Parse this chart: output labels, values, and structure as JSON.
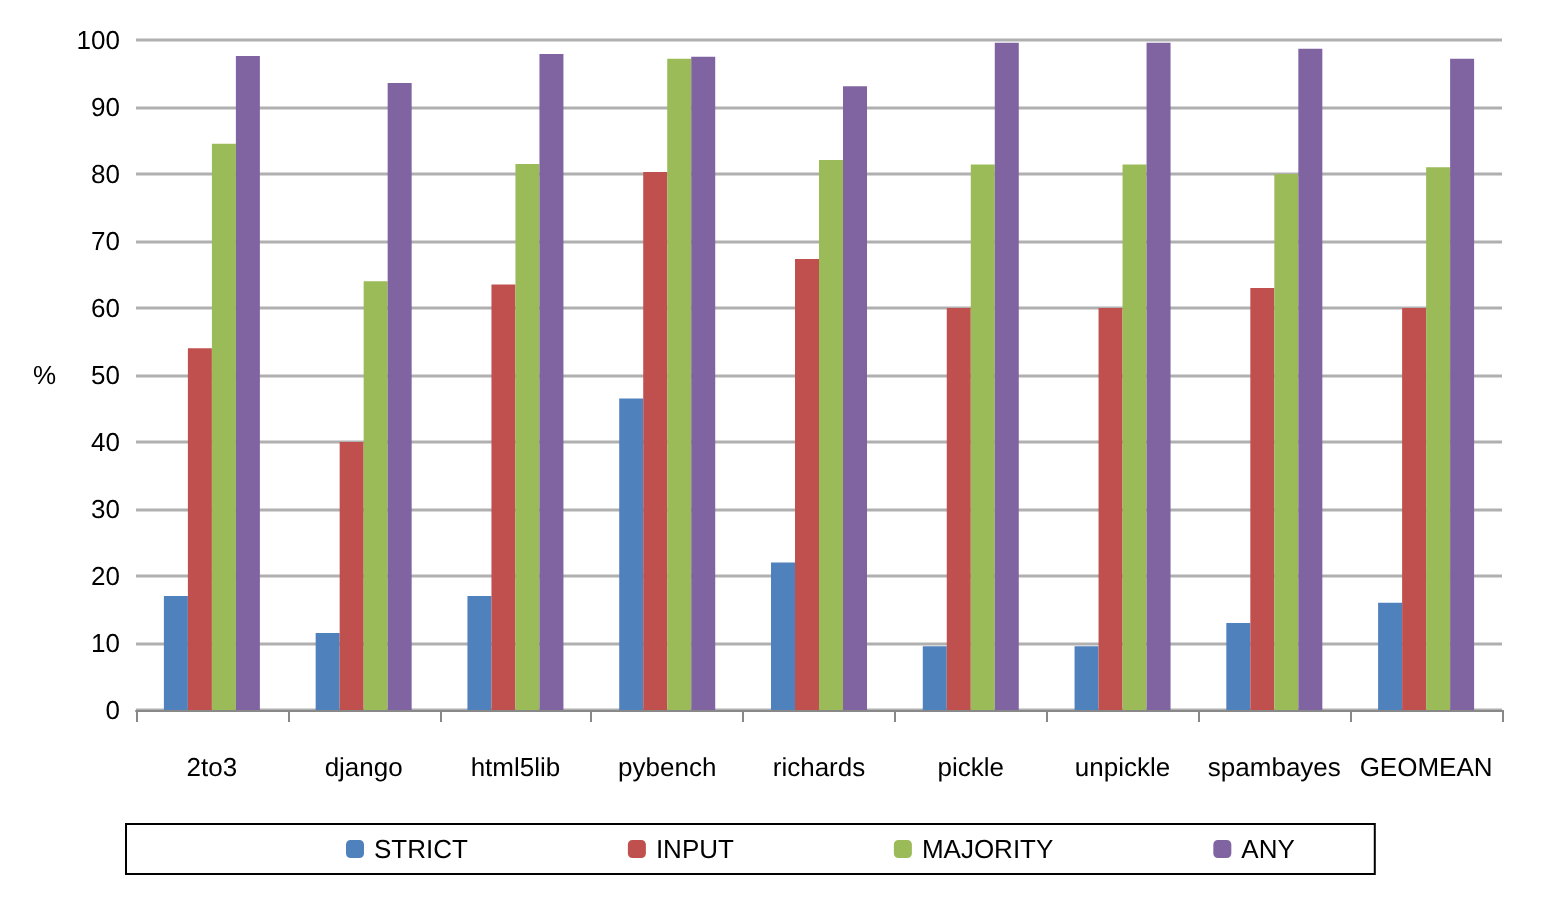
{
  "chart_data": {
    "type": "bar",
    "ylabel": "%",
    "categories": [
      "2to3",
      "django",
      "html5lib",
      "pybench",
      "richards",
      "pickle",
      "unpickle",
      "spambayes",
      "GEOMEAN"
    ],
    "series": [
      {
        "name": "STRICT",
        "color": "#4f81bd",
        "values": [
          17,
          11.5,
          17,
          46.5,
          22,
          9.5,
          9.5,
          13,
          16
        ]
      },
      {
        "name": "INPUT",
        "color": "#c0504d",
        "values": [
          54,
          40,
          63.5,
          80.3,
          67.3,
          60,
          60,
          63,
          60
        ]
      },
      {
        "name": "MAJORITY",
        "color": "#9bbb59",
        "values": [
          84.5,
          64,
          81.5,
          97.2,
          82.1,
          81.4,
          81.4,
          80,
          81
        ]
      },
      {
        "name": "ANY",
        "color": "#8064a2",
        "values": [
          97.6,
          93.6,
          97.9,
          97.5,
          93.1,
          99.6,
          99.6,
          98.7,
          97.2
        ]
      }
    ],
    "ylim": [
      0,
      100
    ],
    "yticks": [
      0,
      10,
      20,
      30,
      40,
      50,
      60,
      70,
      80,
      90,
      100
    ],
    "grid": "y",
    "legend": "bottom"
  }
}
